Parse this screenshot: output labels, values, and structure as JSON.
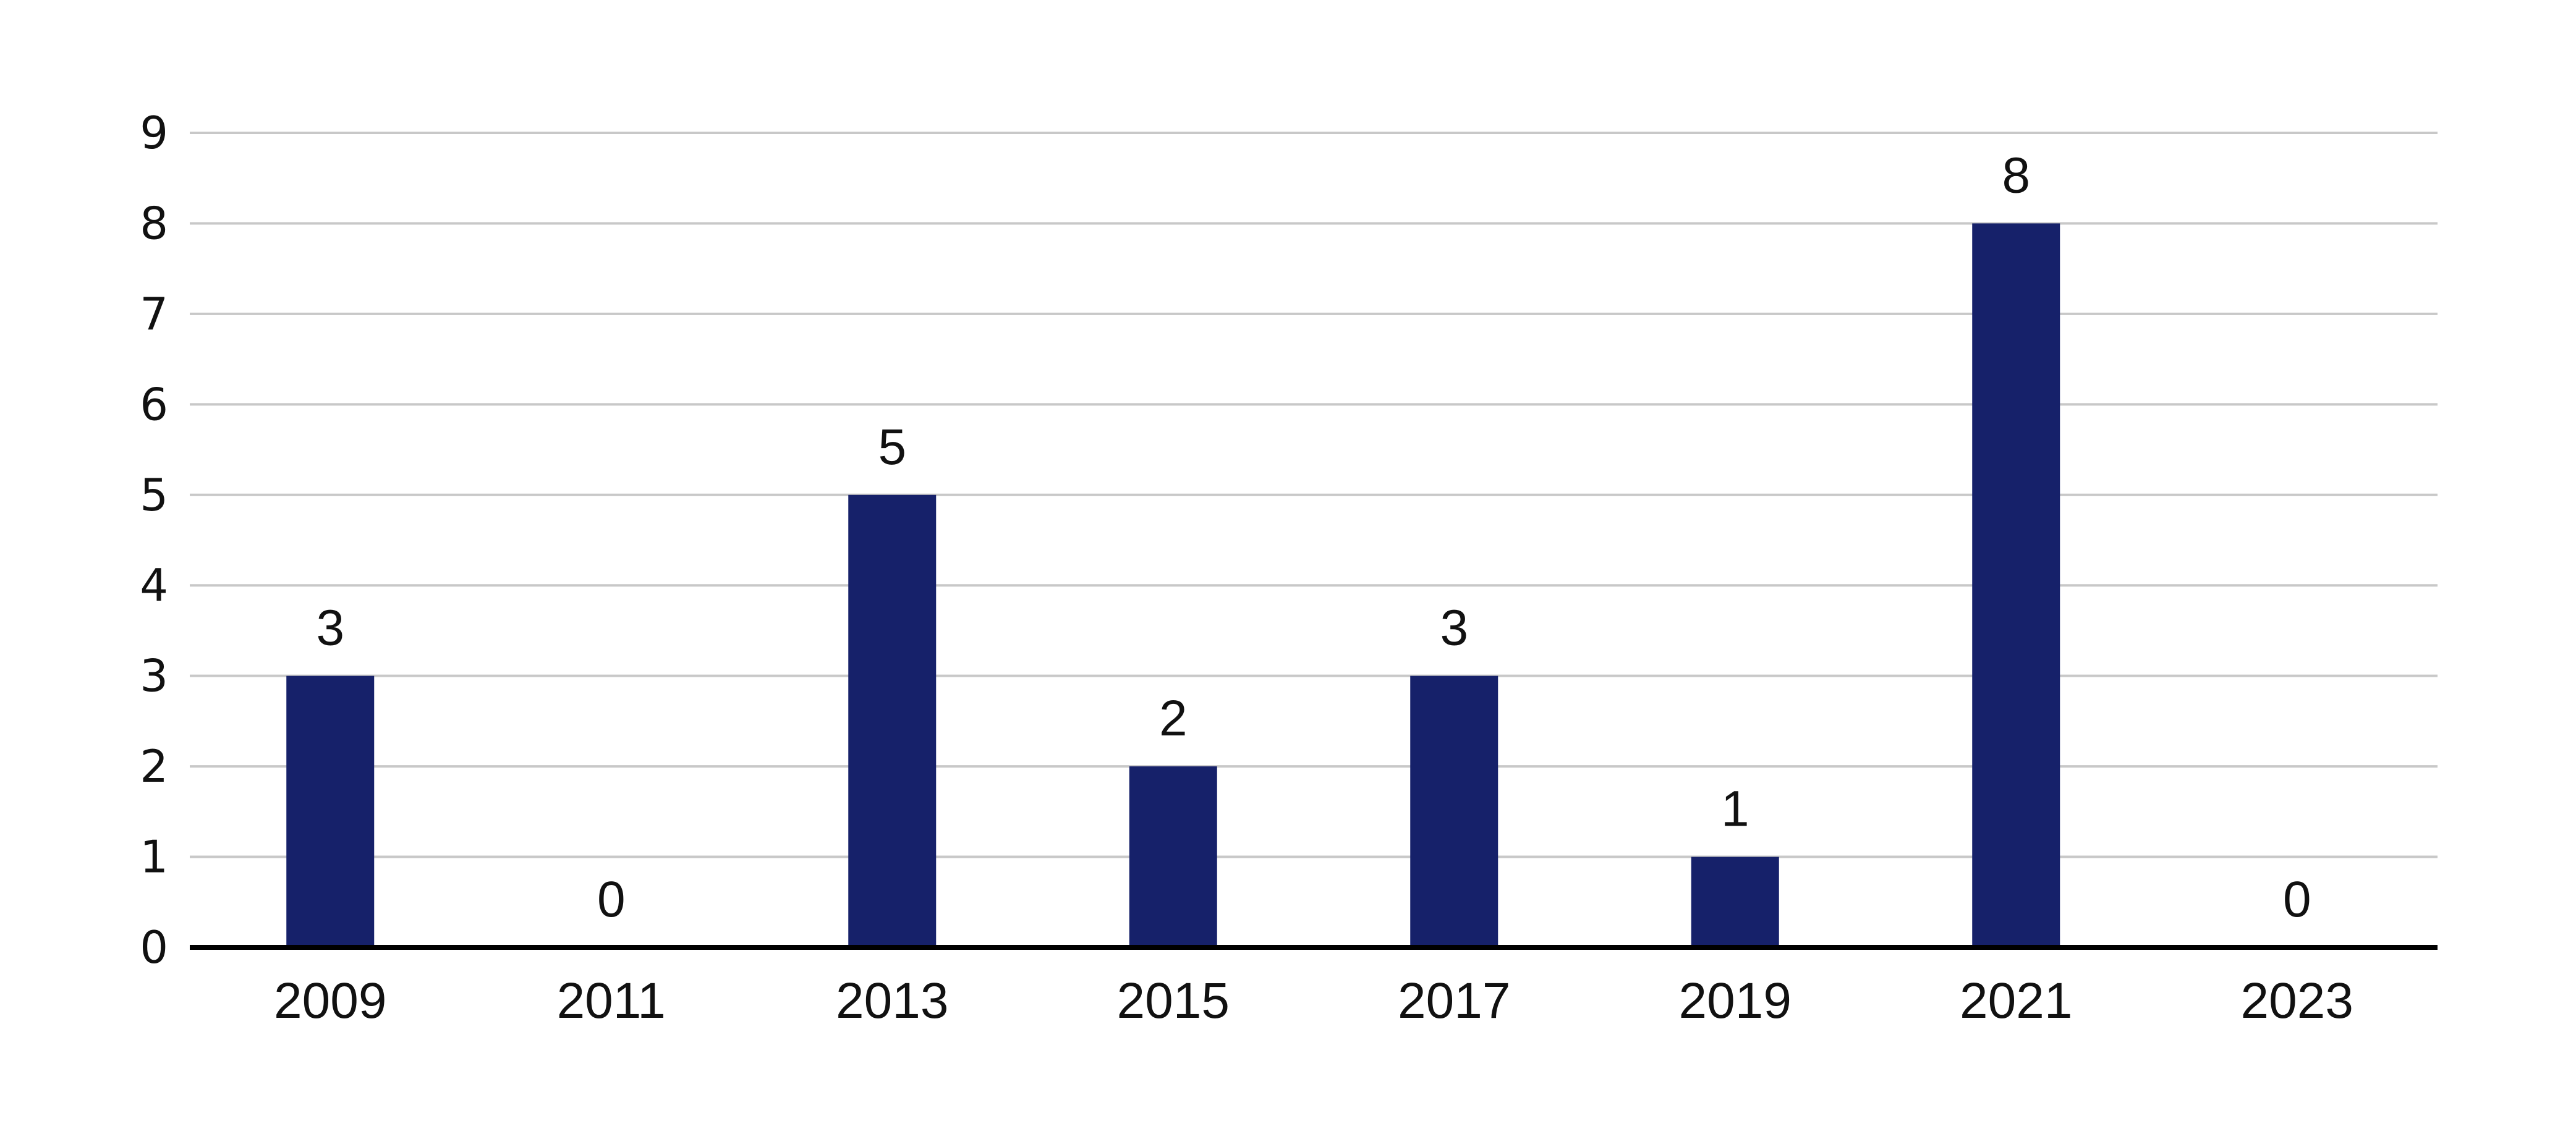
{
  "chart_data": {
    "type": "bar",
    "title": "",
    "xlabel": "",
    "ylabel": "",
    "categories": [
      "2009",
      "2011",
      "2013",
      "2015",
      "2017",
      "2019",
      "2021",
      "2023"
    ],
    "values": [
      3,
      0,
      5,
      2,
      3,
      1,
      8,
      0
    ],
    "data_labels": [
      "3",
      "0",
      "5",
      "2",
      "3",
      "1",
      "8",
      "0"
    ],
    "ylim": [
      0,
      9
    ],
    "yticks": [
      "0",
      "1",
      "2",
      "3",
      "4",
      "5",
      "6",
      "7",
      "8",
      "9"
    ],
    "grid": true,
    "legend": "none",
    "colors": {
      "bar": "#16216a",
      "grid": "#c8c8c8",
      "axis": "#000000",
      "text": "#111111"
    }
  }
}
